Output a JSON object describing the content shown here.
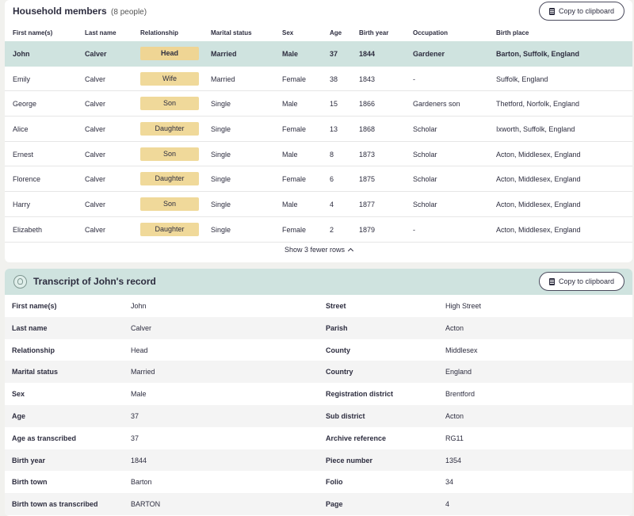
{
  "members": {
    "title": "Household members",
    "count": "(8 people)",
    "copy_label": "Copy to clipboard",
    "columns": [
      "First name(s)",
      "Last name",
      "Relationship",
      "Marital status",
      "Sex",
      "Age",
      "Birth year",
      "Occupation",
      "Birth place"
    ],
    "rows": [
      {
        "first": "John",
        "last": "Calver",
        "relationship": "Head",
        "marital": "Married",
        "sex": "Male",
        "age": "37",
        "year": "1844",
        "occupation": "Gardener",
        "birthplace": "Barton, Suffolk, England"
      },
      {
        "first": "Emily",
        "last": "Calver",
        "relationship": "Wife",
        "marital": "Married",
        "sex": "Female",
        "age": "38",
        "year": "1843",
        "occupation": "-",
        "birthplace": "Suffolk, England"
      },
      {
        "first": "George",
        "last": "Calver",
        "relationship": "Son",
        "marital": "Single",
        "sex": "Male",
        "age": "15",
        "year": "1866",
        "occupation": "Gardeners son",
        "birthplace": "Thetford, Norfolk, England"
      },
      {
        "first": "Alice",
        "last": "Calver",
        "relationship": "Daughter",
        "marital": "Single",
        "sex": "Female",
        "age": "13",
        "year": "1868",
        "occupation": "Scholar",
        "birthplace": "Ixworth, Suffolk, England"
      },
      {
        "first": "Ernest",
        "last": "Calver",
        "relationship": "Son",
        "marital": "Single",
        "sex": "Male",
        "age": "8",
        "year": "1873",
        "occupation": "Scholar",
        "birthplace": "Acton, Middlesex, England"
      },
      {
        "first": "Florence",
        "last": "Calver",
        "relationship": "Daughter",
        "marital": "Single",
        "sex": "Female",
        "age": "6",
        "year": "1875",
        "occupation": "Scholar",
        "birthplace": "Acton, Middlesex, England"
      },
      {
        "first": "Harry",
        "last": "Calver",
        "relationship": "Son",
        "marital": "Single",
        "sex": "Male",
        "age": "4",
        "year": "1877",
        "occupation": "Scholar",
        "birthplace": "Acton, Middlesex, England"
      },
      {
        "first": "Elizabeth",
        "last": "Calver",
        "relationship": "Daughter",
        "marital": "Single",
        "sex": "Female",
        "age": "2",
        "year": "1879",
        "occupation": "-",
        "birthplace": "Acton, Middlesex, England"
      }
    ],
    "toggle_label": "Show 3 fewer rows"
  },
  "transcript": {
    "title": "Transcript of John's record",
    "copy_label": "Copy to clipboard",
    "rows": [
      {
        "l1": "First name(s)",
        "v1": "John",
        "l2": "Street",
        "v2": "High Street"
      },
      {
        "l1": "Last name",
        "v1": "Calver",
        "l2": "Parish",
        "v2": "Acton"
      },
      {
        "l1": "Relationship",
        "v1": "Head",
        "l2": "County",
        "v2": "Middlesex"
      },
      {
        "l1": "Marital status",
        "v1": "Married",
        "l2": "Country",
        "v2": "England"
      },
      {
        "l1": "Sex",
        "v1": "Male",
        "l2": "Registration district",
        "v2": "Brentford"
      },
      {
        "l1": "Age",
        "v1": "37",
        "l2": "Sub district",
        "v2": "Acton"
      },
      {
        "l1": "Age as transcribed",
        "v1": "37",
        "l2": "Archive reference",
        "v2": "RG11"
      },
      {
        "l1": "Birth year",
        "v1": "1844",
        "l2": "Piece number",
        "v2": "1354"
      },
      {
        "l1": "Birth town",
        "v1": "Barton",
        "l2": "Folio",
        "v2": "34"
      },
      {
        "l1": "Birth town as transcribed",
        "v1": "BARTON",
        "l2": "Page",
        "v2": "4"
      }
    ]
  },
  "colors": {
    "selected_row": "#cfe3df",
    "relationship_tag": "#f0d99a",
    "text": "#2d2d3f"
  }
}
